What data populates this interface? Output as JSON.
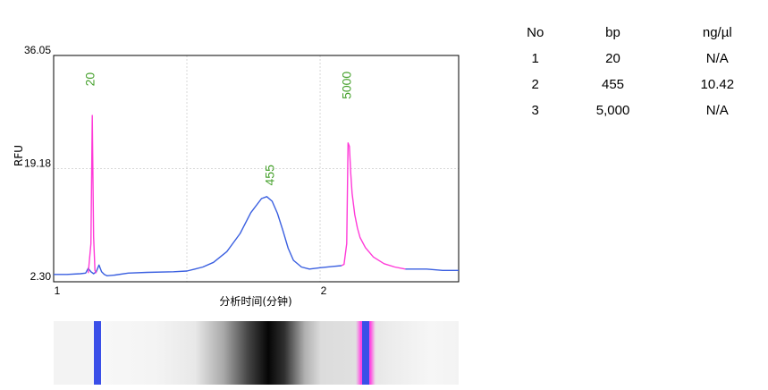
{
  "chart_data": {
    "type": "line",
    "xlabel": "分析时间(分钟)",
    "ylabel": "RFU",
    "xlim": [
      1.0,
      2.52
    ],
    "ylim": [
      2.3,
      36.05
    ],
    "x_ticks": [
      {
        "value": 1,
        "label": "1"
      },
      {
        "value": 2,
        "label": "2"
      }
    ],
    "y_ticks": [
      {
        "value": 2.3,
        "label": "2.30"
      },
      {
        "value": 19.18,
        "label": "19.18"
      },
      {
        "value": 36.05,
        "label": "36.05"
      }
    ],
    "grid": true,
    "series": [
      {
        "color": "#3a5fe0",
        "x": [
          1.0,
          1.05,
          1.1,
          1.12,
          1.13,
          1.14,
          1.15,
          1.16,
          1.17,
          1.18,
          1.19,
          1.2,
          1.23,
          1.28,
          1.35,
          1.45,
          1.5,
          1.53,
          1.56,
          1.6,
          1.65,
          1.7,
          1.74,
          1.78,
          1.8,
          1.82,
          1.84,
          1.86,
          1.88,
          1.9,
          1.93,
          1.96,
          2.0,
          2.05,
          2.08
        ],
        "y": [
          3.4,
          3.4,
          3.5,
          3.6,
          4.3,
          3.8,
          3.5,
          3.8,
          4.8,
          3.8,
          3.4,
          3.2,
          3.3,
          3.6,
          3.7,
          3.8,
          3.9,
          4.2,
          4.5,
          5.2,
          6.8,
          9.5,
          12.6,
          14.7,
          15.0,
          14.3,
          12.5,
          10.0,
          7.3,
          5.5,
          4.5,
          4.2,
          4.4,
          4.6,
          4.7
        ]
      },
      {
        "color": "#ff3ad8",
        "x": [
          1.13,
          1.14,
          1.145,
          1.15,
          1.155,
          1.16
        ],
        "y": [
          3.6,
          8.0,
          27.1,
          9.0,
          4.0,
          3.6
        ],
        "peak_label": "20",
        "label_x": 1.153,
        "label_y": 32.5
      },
      {
        "color": "#ff3ad8",
        "x": [
          2.08,
          2.09,
          2.1,
          2.105,
          2.11,
          2.115,
          2.12,
          2.13,
          2.14,
          2.15,
          2.17,
          2.2,
          2.24,
          2.28,
          2.32
        ],
        "y": [
          4.7,
          4.9,
          8.0,
          23.0,
          22.5,
          18.5,
          15.5,
          12.3,
          10.3,
          8.9,
          7.4,
          6.0,
          5.0,
          4.5,
          4.2
        ],
        "peak_label": "5000",
        "label_x": 2.115,
        "label_y": 31.6
      },
      {
        "color": "#3a5fe0",
        "x": [
          2.32,
          2.4,
          2.46,
          2.52
        ],
        "y": [
          4.2,
          4.2,
          4.0,
          4.0
        ]
      }
    ],
    "peak_labels": [
      {
        "label": "455",
        "x": 1.827,
        "y": 18.2
      }
    ]
  },
  "table": {
    "headers": [
      "No",
      "bp",
      "ng/µl"
    ],
    "rows": [
      [
        "1",
        "20",
        "N/A"
      ],
      [
        "2",
        "455",
        "10.42"
      ],
      [
        "3",
        "5,000",
        "N/A"
      ]
    ]
  }
}
